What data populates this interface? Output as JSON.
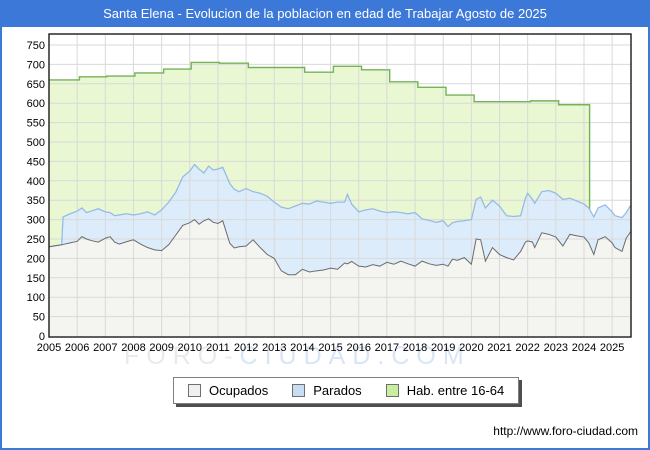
{
  "window": {
    "title": "Santa Elena - Evolucion de la poblacion en edad de Trabajar Agosto de 2025"
  },
  "footer": {
    "url": "http://www.foro-ciudad.com"
  },
  "watermark": {
    "gray_part": "FORO-",
    "blue_part": "CIUDAD.COM"
  },
  "colors": {
    "titlebar": "#3c78d8",
    "frame_border": "#3c78d8",
    "grid": "#d9d9d9",
    "plot_border": "#1a1a1a",
    "ocupados_fill": "#f4f4f1",
    "ocupados_line": "#6b6b6b",
    "parados_fill": "#ddecfa",
    "parados_line": "#96bce6",
    "hab_fill": "#e9f7d2",
    "hab_line": "#76b356"
  },
  "legend": {
    "items": [
      {
        "label": "Ocupados",
        "swatch": "#f0f0f0"
      },
      {
        "label": "Parados",
        "swatch": "#c8dcf4"
      },
      {
        "label": "Hab. entre 16-64",
        "swatch": "#c8ef9e"
      }
    ]
  },
  "chart_data": {
    "type": "area",
    "title": "Santa Elena - Evolucion de la poblacion en edad de Trabajar Agosto de 2025",
    "xlabel": "",
    "ylabel": "",
    "xlim": [
      2005,
      2025.67
    ],
    "ylim": [
      0,
      778
    ],
    "grid": true,
    "legend_position": "bottom",
    "note": "Parados is stacked on top of Ocupados; Hab. entre 16-64 is an annual step series (padron) that ends at the start of 2024.",
    "x_ticks": [
      2005,
      2006,
      2007,
      2008,
      2009,
      2010,
      2011,
      2012,
      2013,
      2014,
      2015,
      2016,
      2017,
      2018,
      2019,
      2020,
      2021,
      2022,
      2023,
      2024,
      2025
    ],
    "y_ticks": [
      0,
      50,
      100,
      150,
      200,
      250,
      300,
      350,
      400,
      450,
      500,
      550,
      600,
      650,
      700,
      750
    ],
    "x": [
      2005.0,
      2005.25,
      2005.45,
      2005.5,
      2005.75,
      2006.0,
      2006.17,
      2006.33,
      2006.5,
      2006.75,
      2007.0,
      2007.17,
      2007.33,
      2007.5,
      2007.75,
      2008.0,
      2008.25,
      2008.5,
      2008.75,
      2009.0,
      2009.25,
      2009.5,
      2009.75,
      2010.0,
      2010.17,
      2010.33,
      2010.5,
      2010.67,
      2010.83,
      2011.0,
      2011.17,
      2011.42,
      2011.58,
      2011.75,
      2012.0,
      2012.25,
      2012.5,
      2012.75,
      2013.0,
      2013.25,
      2013.5,
      2013.75,
      2014.0,
      2014.25,
      2014.5,
      2014.75,
      2015.0,
      2015.25,
      2015.5,
      2015.6,
      2015.75,
      2016.0,
      2016.25,
      2016.5,
      2016.75,
      2017.0,
      2017.25,
      2017.5,
      2017.75,
      2018.0,
      2018.25,
      2018.5,
      2018.75,
      2019.0,
      2019.17,
      2019.33,
      2019.5,
      2019.75,
      2020.0,
      2020.17,
      2020.33,
      2020.5,
      2020.75,
      2021.0,
      2021.25,
      2021.5,
      2021.75,
      2021.92,
      2022.0,
      2022.17,
      2022.25,
      2022.5,
      2022.75,
      2023.0,
      2023.25,
      2023.5,
      2023.75,
      2024.0,
      2024.17,
      2024.35,
      2024.5,
      2024.75,
      2025.0,
      2025.1,
      2025.35,
      2025.5,
      2025.67
    ],
    "series": [
      {
        "name": "Ocupados",
        "values": [
          230,
          233,
          235,
          236,
          240,
          244,
          256,
          250,
          246,
          242,
          252,
          256,
          242,
          237,
          243,
          248,
          237,
          228,
          222,
          220,
          235,
          260,
          285,
          292,
          300,
          288,
          297,
          302,
          293,
          290,
          297,
          239,
          227,
          230,
          232,
          248,
          228,
          210,
          200,
          168,
          158,
          158,
          172,
          165,
          168,
          170,
          175,
          172,
          188,
          186,
          192,
          180,
          178,
          184,
          180,
          190,
          185,
          193,
          186,
          180,
          193,
          186,
          182,
          185,
          180,
          198,
          195,
          202,
          185,
          250,
          248,
          193,
          228,
          210,
          202,
          196,
          218,
          242,
          245,
          242,
          228,
          266,
          262,
          255,
          232,
          262,
          258,
          255,
          240,
          210,
          248,
          256,
          240,
          228,
          218,
          252,
          270
        ]
      },
      {
        "name": "Parados",
        "stacked_on": "Ocupados",
        "values": [
          0,
          0,
          0,
          71,
          75,
          78,
          74,
          68,
          76,
          86,
          68,
          62,
          68,
          75,
          72,
          64,
          78,
          92,
          90,
          105,
          110,
          110,
          125,
          133,
          142,
          142,
          123,
          136,
          135,
          140,
          138,
          154,
          151,
          142,
          148,
          124,
          140,
          150,
          145,
          164,
          170,
          177,
          170,
          175,
          180,
          175,
          167,
          173,
          157,
          179,
          148,
          140,
          147,
          144,
          142,
          128,
          135,
          125,
          129,
          138,
          109,
          112,
          111,
          112,
          102,
          94,
          100,
          95,
          115,
          102,
          110,
          137,
          122,
          125,
          108,
          112,
          92,
          113,
          123,
          110,
          114,
          106,
          113,
          113,
          120,
          93,
          90,
          85,
          90,
          97,
          82,
          82,
          80,
          82,
          87,
          66,
          68
        ]
      },
      {
        "name": "Hab. entre 16-64",
        "render": "step",
        "end_x": 2024.2,
        "step_points": [
          [
            2005.0,
            660
          ],
          [
            2006.08,
            668
          ],
          [
            2007.05,
            670
          ],
          [
            2008.05,
            678
          ],
          [
            2009.07,
            688
          ],
          [
            2010.05,
            705
          ],
          [
            2011.05,
            703
          ],
          [
            2012.08,
            692
          ],
          [
            2014.08,
            680
          ],
          [
            2015.1,
            695
          ],
          [
            2016.1,
            686
          ],
          [
            2017.1,
            655
          ],
          [
            2018.1,
            641
          ],
          [
            2019.1,
            621
          ],
          [
            2020.1,
            604
          ],
          [
            2022.1,
            606
          ],
          [
            2023.1,
            596
          ]
        ]
      }
    ]
  }
}
